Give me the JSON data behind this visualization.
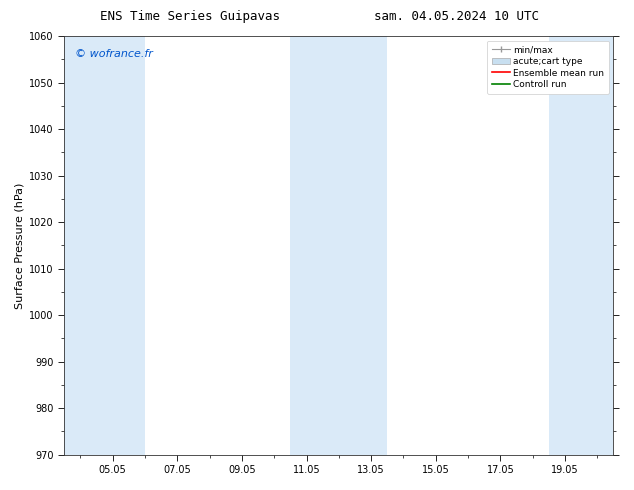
{
  "title_left": "ENS Time Series Guipavas",
  "title_right": "sam. 04.05.2024 10 UTC",
  "ylabel": "Surface Pressure (hPa)",
  "ylim": [
    970,
    1060
  ],
  "yticks": [
    970,
    980,
    990,
    1000,
    1010,
    1020,
    1030,
    1040,
    1050,
    1060
  ],
  "xtick_labels": [
    "05.05",
    "07.05",
    "09.05",
    "11.05",
    "13.05",
    "15.05",
    "17.05",
    "19.05"
  ],
  "xtick_positions": [
    1,
    3,
    5,
    7,
    9,
    11,
    13,
    15
  ],
  "xlim": [
    -0.5,
    16.5
  ],
  "watermark": "© wofrance.fr",
  "watermark_color": "#0055cc",
  "bg_color": "#ffffff",
  "shaded_bands": [
    {
      "x_start": -0.5,
      "x_end": 2.0,
      "color": "#daeaf8"
    },
    {
      "x_start": 6.5,
      "x_end": 9.5,
      "color": "#daeaf8"
    },
    {
      "x_start": 14.5,
      "x_end": 16.5,
      "color": "#daeaf8"
    }
  ],
  "legend_entries": [
    {
      "label": "min/max",
      "type": "errorbar",
      "color": "#999999"
    },
    {
      "label": "acute;cart type",
      "type": "bar",
      "color": "#c8dff0"
    },
    {
      "label": "Ensemble mean run",
      "type": "line",
      "color": "#ff0000"
    },
    {
      "label": "Controll run",
      "type": "line",
      "color": "#008000"
    }
  ],
  "title_fontsize": 9,
  "tick_fontsize": 7,
  "ylabel_fontsize": 8,
  "watermark_fontsize": 8,
  "legend_fontsize": 6.5
}
